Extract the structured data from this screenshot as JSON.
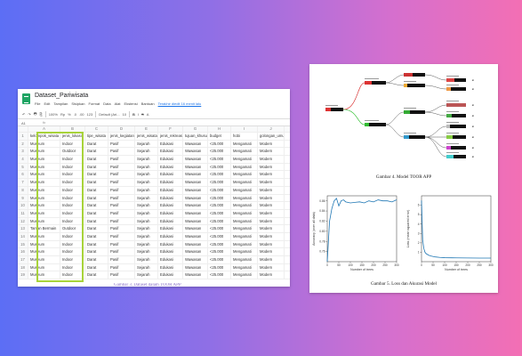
{
  "spreadsheet": {
    "title": "Dataset_Pariwisata",
    "menu": [
      "File",
      "Edit",
      "Tampilan",
      "Sisipkan",
      "Format",
      "Data",
      "Alat",
      "Ekstensi",
      "Bantuan"
    ],
    "saved_text": "Terakhir diedit 16 menit lalu",
    "toolbar": [
      "↶",
      "↷",
      "🖶",
      "⎘",
      "100%",
      "Rp",
      "%",
      ".0",
      ".00",
      "123",
      "Default (Ari...",
      "10",
      "B",
      "I",
      "S",
      "A"
    ],
    "cell_ref": "A1",
    "fx": "fx",
    "col_letters": [
      "A",
      "B",
      "C",
      "D",
      "E",
      "F",
      "G",
      "H",
      "I",
      "J"
    ],
    "headers": [
      "kelompok_wisata",
      "jenis_lokasi",
      "tipe_wisata",
      "jenis_kegiatan",
      "jenis_wisata",
      "jenis_rekreasi",
      "tujuan_khusus",
      "budget",
      "hobi",
      "golongan_umur"
    ],
    "rows": [
      [
        "Museum",
        "Indoor",
        "Darat",
        "Pasif",
        "Sejarah",
        "Edukasi",
        "Wawasan",
        "<25.000",
        "Mengamati",
        "Modern"
      ],
      [
        "Museum",
        "Outdoor",
        "Darat",
        "Pasif",
        "Sejarah",
        "Edukasi",
        "Wawasan",
        "<25.000",
        "Mengamati",
        "Modern"
      ],
      [
        "Museum",
        "Indoor",
        "Darat",
        "Pasif",
        "Sejarah",
        "Edukasi",
        "Wawasan",
        "<25.000",
        "Mengamati",
        "Modern"
      ],
      [
        "Museum",
        "Indoor",
        "Darat",
        "Pasif",
        "Sejarah",
        "Edukasi",
        "Wawasan",
        "<25.000",
        "Mengamati",
        "Modern"
      ],
      [
        "Museum",
        "Indoor",
        "Darat",
        "Pasif",
        "Sejarah",
        "Edukasi",
        "Wawasan",
        "<25.000",
        "Mengamati",
        "Modern"
      ],
      [
        "Museum",
        "Indoor",
        "Darat",
        "Pasif",
        "Sejarah",
        "Edukasi",
        "Wawasan",
        "<25.000",
        "Mengamati",
        "Modern"
      ],
      [
        "Museum",
        "Indoor",
        "Darat",
        "Pasif",
        "Sejarah",
        "Edukasi",
        "Wawasan",
        "<25.000",
        "Mengamati",
        "Modern"
      ],
      [
        "Museum",
        "Indoor",
        "Darat",
        "Pasif",
        "Sejarah",
        "Edukasi",
        "Wawasan",
        "<25.000",
        "Mengamati",
        "Modern"
      ],
      [
        "Museum",
        "Indoor",
        "Darat",
        "Pasif",
        "Sejarah",
        "Edukasi",
        "Wawasan",
        "<25.000",
        "Mengamati",
        "Modern"
      ],
      [
        "Museum",
        "Indoor",
        "Darat",
        "Pasif",
        "Sejarah",
        "Edukasi",
        "Wawasan",
        "<25.000",
        "Mengamati",
        "Modern"
      ],
      [
        "Museum",
        "Indoor",
        "Darat",
        "Pasif",
        "Sejarah",
        "Edukasi",
        "Wawasan",
        "<25.000",
        "Mengamati",
        "Modern"
      ],
      [
        "Taman Bermain",
        "Outdoor",
        "Darat",
        "Pasif",
        "Sejarah",
        "Edukasi",
        "Wawasan",
        "<25.000",
        "Mengamati",
        "Modern"
      ],
      [
        "Museum",
        "Indoor",
        "Darat",
        "Pasif",
        "Sejarah",
        "Edukasi",
        "Wawasan",
        "<25.000",
        "Mengamati",
        "Modern"
      ],
      [
        "Museum",
        "Indoor",
        "Darat",
        "Pasif",
        "Sejarah",
        "Edukasi",
        "Wawasan",
        "<25.000",
        "Mengamati",
        "Modern"
      ],
      [
        "Museum",
        "Indoor",
        "Darat",
        "Pasif",
        "Sejarah",
        "Edukasi",
        "Wawasan",
        "<25.000",
        "Mengamati",
        "Modern"
      ],
      [
        "Museum",
        "Indoor",
        "Darat",
        "Pasif",
        "Sejarah",
        "Edukasi",
        "Wawasan",
        "<25.000",
        "Mengamati",
        "Modern"
      ],
      [
        "Museum",
        "Indoor",
        "Darat",
        "Pasif",
        "Sejarah",
        "Edukasi",
        "Wawasan",
        "<25.000",
        "Mengamati",
        "Modern"
      ],
      [
        "Museum",
        "Indoor",
        "Darat",
        "Pasif",
        "Sejarah",
        "Edukasi",
        "Wawasan",
        "<25.000",
        "Mengamati",
        "Modern"
      ]
    ],
    "caption": "Gambar 3. Dataset dalam TOOR APP",
    "highlight_color": "#a8d33a"
  },
  "paper": {
    "tree_caption": "Gambar 4. Model TOOR APP",
    "charts_caption": "Gambar 5. Loss dan Akurasi Model"
  },
  "chart_data": [
    {
      "type": "line",
      "xlabel": "Number of trees",
      "ylabel": "Accuracy (over all data)",
      "xlim": [
        0,
        300
      ],
      "ylim": [
        0.74,
        0.87
      ],
      "xticks": [
        0,
        50,
        100,
        150,
        200,
        250,
        300
      ],
      "yticks": [
        0.76,
        0.78,
        0.8,
        0.82,
        0.84,
        0.86
      ],
      "x": [
        0,
        5,
        10,
        20,
        30,
        40,
        50,
        60,
        70,
        80,
        100,
        120,
        140,
        160,
        180,
        200,
        220,
        240,
        260,
        280,
        300
      ],
      "y": [
        0.74,
        0.78,
        0.82,
        0.845,
        0.86,
        0.865,
        0.85,
        0.86,
        0.862,
        0.858,
        0.856,
        0.857,
        0.858,
        0.856,
        0.86,
        0.858,
        0.862,
        0.86,
        0.86,
        0.858,
        0.862
      ],
      "color": "#1f77b4"
    },
    {
      "type": "line",
      "xlabel": "Number of trees",
      "ylabel": "Loss (mean squared error)",
      "xlim": [
        0,
        300
      ],
      "ylim": [
        0,
        7
      ],
      "xticks": [
        0,
        50,
        100,
        150,
        200,
        250,
        300
      ],
      "yticks": [
        1,
        2,
        3,
        4,
        5,
        6
      ],
      "x": [
        0,
        5,
        10,
        15,
        20,
        30,
        40,
        60,
        80,
        100,
        150,
        200,
        250,
        300
      ],
      "y": [
        6.5,
        2.3,
        1.4,
        1.0,
        0.85,
        0.7,
        0.6,
        0.5,
        0.45,
        0.42,
        0.4,
        0.39,
        0.38,
        0.38
      ],
      "color": "#1f77b4"
    }
  ]
}
